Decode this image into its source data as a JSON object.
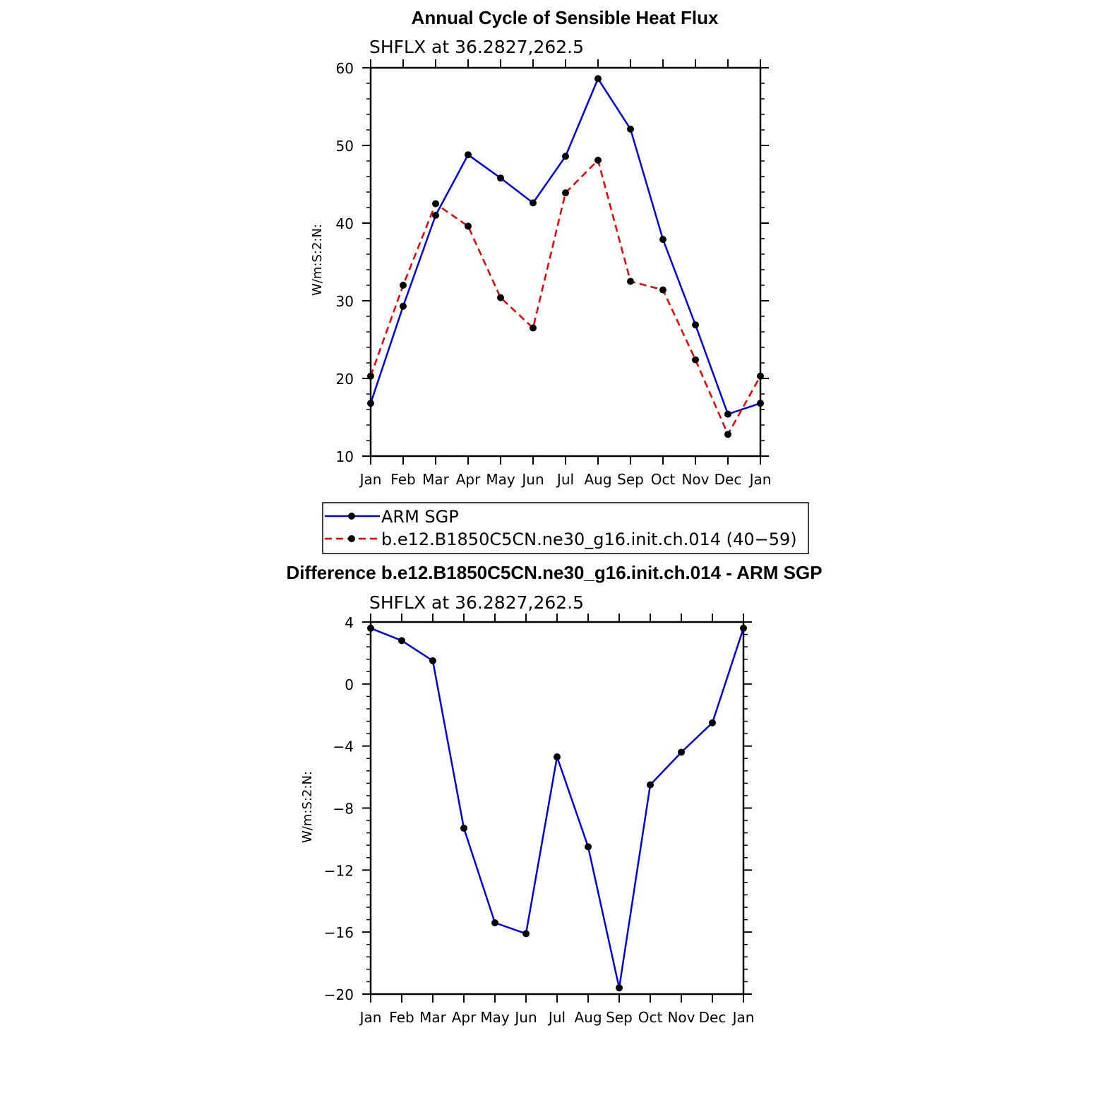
{
  "colors": {
    "obs": "#0000ee",
    "model": "#ee0000",
    "marker": "#000000"
  },
  "chart_data": [
    {
      "type": "line",
      "title": "Annual Cycle of Sensible Heat Flux",
      "subtitle": "SHFLX at 36.2827,262.5",
      "xlabel": "",
      "ylabel": "W/m:S:2:N:",
      "categories": [
        "Jan",
        "Feb",
        "Mar",
        "Apr",
        "May",
        "Jun",
        "Jul",
        "Aug",
        "Sep",
        "Oct",
        "Nov",
        "Dec",
        "Jan"
      ],
      "ylim": [
        10,
        60
      ],
      "yticks": [
        "10",
        "20",
        "30",
        "40",
        "50",
        "60"
      ],
      "series": [
        {
          "name": "ARM SGP",
          "style": "solid",
          "values": [
            16.8,
            29.3,
            41.0,
            48.8,
            45.8,
            42.6,
            48.6,
            58.6,
            52.1,
            37.9,
            26.9,
            15.4,
            16.8
          ]
        },
        {
          "name": "b.e12.B1850C5CN.ne30_g16.init.ch.014 (40−59)",
          "style": "dashed",
          "values": [
            20.3,
            32.0,
            42.5,
            39.6,
            30.4,
            26.5,
            43.9,
            48.1,
            32.5,
            31.4,
            22.4,
            12.8,
            20.3
          ]
        }
      ]
    },
    {
      "type": "line",
      "title": "Difference b.e12.B1850C5CN.ne30_g16.init.ch.014 - ARM SGP",
      "subtitle": "SHFLX at 36.2827,262.5",
      "xlabel": "",
      "ylabel": "W/m:S:2:N:",
      "categories": [
        "Jan",
        "Feb",
        "Mar",
        "Apr",
        "May",
        "Jun",
        "Jul",
        "Aug",
        "Sep",
        "Oct",
        "Nov",
        "Dec",
        "Jan"
      ],
      "ylim": [
        -20,
        4
      ],
      "yticks": [
        "−20",
        "−16",
        "−12",
        "−8",
        "−4",
        "0",
        "4"
      ],
      "series": [
        {
          "style": "solid",
          "values": [
            3.6,
            2.8,
            1.5,
            -9.3,
            -15.4,
            -16.1,
            -4.7,
            -10.5,
            -19.6,
            -6.5,
            -4.4,
            -2.5,
            3.6
          ]
        }
      ]
    }
  ]
}
